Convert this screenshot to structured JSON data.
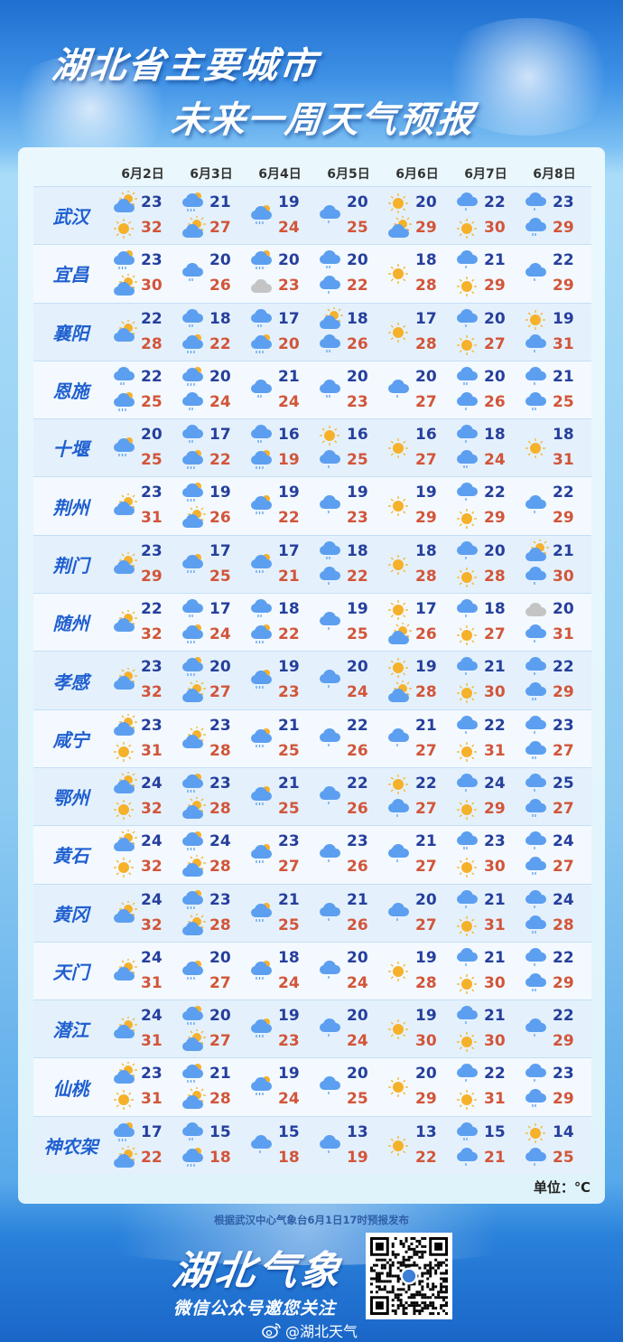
{
  "title": {
    "line1": "湖北省主要城市",
    "line2": "未来一周天气预报"
  },
  "colors": {
    "low": "#263f9c",
    "high": "#d2553a",
    "city": "#1f5fd0",
    "sun": "#f6b12a",
    "cloud": "#5c9ff0",
    "overcast": "#c4c4c4"
  },
  "table": {
    "days": [
      "6月2日",
      "6月3日",
      "6月4日",
      "6月5日",
      "6月6日",
      "6月7日",
      "6月8日"
    ],
    "rows": [
      {
        "city": "武汉",
        "cells": [
          {
            "icons": [
              "partly-cloudy",
              "sunny"
            ],
            "low": "23",
            "high": "32"
          },
          {
            "icons": [
              "shower",
              "partly-cloudy"
            ],
            "low": "21",
            "high": "27"
          },
          {
            "icons": [
              "shower"
            ],
            "low": "19",
            "high": "24"
          },
          {
            "icons": [
              "light-rain"
            ],
            "low": "20",
            "high": "25"
          },
          {
            "icons": [
              "sunny",
              "partly-cloudy"
            ],
            "low": "20",
            "high": "29"
          },
          {
            "icons": [
              "light-rain",
              "sunny"
            ],
            "low": "22",
            "high": "30"
          },
          {
            "icons": [
              "light-rain",
              "moderate-rain"
            ],
            "low": "23",
            "high": "29"
          }
        ]
      },
      {
        "city": "宜昌",
        "cells": [
          {
            "icons": [
              "shower",
              "partly-cloudy"
            ],
            "low": "23",
            "high": "30"
          },
          {
            "icons": [
              "moderate-rain"
            ],
            "low": "20",
            "high": "26"
          },
          {
            "icons": [
              "shower",
              "overcast"
            ],
            "low": "20",
            "high": "23"
          },
          {
            "icons": [
              "moderate-rain",
              "light-rain"
            ],
            "low": "20",
            "high": "22"
          },
          {
            "icons": [
              "sunny"
            ],
            "low": "18",
            "high": "28"
          },
          {
            "icons": [
              "light-rain",
              "sunny"
            ],
            "low": "21",
            "high": "29"
          },
          {
            "icons": [
              "light-rain"
            ],
            "low": "22",
            "high": "29"
          }
        ]
      },
      {
        "city": "襄阳",
        "cells": [
          {
            "icons": [
              "partly-cloudy"
            ],
            "low": "22",
            "high": "28"
          },
          {
            "icons": [
              "moderate-rain",
              "shower"
            ],
            "low": "18",
            "high": "22"
          },
          {
            "icons": [
              "moderate-rain",
              "shower"
            ],
            "low": "17",
            "high": "20"
          },
          {
            "icons": [
              "partly-cloudy",
              "moderate-rain"
            ],
            "low": "18",
            "high": "26"
          },
          {
            "icons": [
              "sunny"
            ],
            "low": "17",
            "high": "28"
          },
          {
            "icons": [
              "light-rain",
              "sunny"
            ],
            "low": "20",
            "high": "27"
          },
          {
            "icons": [
              "sunny",
              "light-rain"
            ],
            "low": "19",
            "high": "31"
          }
        ]
      },
      {
        "city": "恩施",
        "cells": [
          {
            "icons": [
              "moderate-rain",
              "shower"
            ],
            "low": "22",
            "high": "25"
          },
          {
            "icons": [
              "shower",
              "moderate-rain"
            ],
            "low": "20",
            "high": "24"
          },
          {
            "icons": [
              "moderate-rain"
            ],
            "low": "21",
            "high": "24"
          },
          {
            "icons": [
              "moderate-rain"
            ],
            "low": "20",
            "high": "23"
          },
          {
            "icons": [
              "light-rain"
            ],
            "low": "20",
            "high": "27"
          },
          {
            "icons": [
              "moderate-rain",
              "light-rain"
            ],
            "low": "20",
            "high": "26"
          },
          {
            "icons": [
              "light-rain",
              "moderate-rain"
            ],
            "low": "21",
            "high": "25"
          }
        ]
      },
      {
        "city": "十堰",
        "cells": [
          {
            "icons": [
              "shower"
            ],
            "low": "20",
            "high": "25"
          },
          {
            "icons": [
              "moderate-rain",
              "shower"
            ],
            "low": "17",
            "high": "22"
          },
          {
            "icons": [
              "moderate-rain",
              "shower"
            ],
            "low": "16",
            "high": "19"
          },
          {
            "icons": [
              "sunny",
              "light-rain"
            ],
            "low": "16",
            "high": "25"
          },
          {
            "icons": [
              "sunny"
            ],
            "low": "16",
            "high": "27"
          },
          {
            "icons": [
              "light-rain",
              "moderate-rain"
            ],
            "low": "18",
            "high": "24"
          },
          {
            "icons": [
              "sunny"
            ],
            "low": "18",
            "high": "31"
          }
        ]
      },
      {
        "city": "荆州",
        "cells": [
          {
            "icons": [
              "partly-cloudy"
            ],
            "low": "23",
            "high": "31"
          },
          {
            "icons": [
              "shower",
              "partly-cloudy"
            ],
            "low": "19",
            "high": "26"
          },
          {
            "icons": [
              "shower"
            ],
            "low": "19",
            "high": "22"
          },
          {
            "icons": [
              "light-rain"
            ],
            "low": "19",
            "high": "23"
          },
          {
            "icons": [
              "sunny"
            ],
            "low": "19",
            "high": "29"
          },
          {
            "icons": [
              "light-rain",
              "sunny"
            ],
            "low": "22",
            "high": "29"
          },
          {
            "icons": [
              "light-rain"
            ],
            "low": "22",
            "high": "29"
          }
        ]
      },
      {
        "city": "荆门",
        "cells": [
          {
            "icons": [
              "partly-cloudy"
            ],
            "low": "23",
            "high": "29"
          },
          {
            "icons": [
              "shower"
            ],
            "low": "17",
            "high": "25"
          },
          {
            "icons": [
              "shower"
            ],
            "low": "17",
            "high": "21"
          },
          {
            "icons": [
              "moderate-rain",
              "light-rain"
            ],
            "low": "18",
            "high": "22"
          },
          {
            "icons": [
              "sunny"
            ],
            "low": "18",
            "high": "28"
          },
          {
            "icons": [
              "light-rain",
              "sunny"
            ],
            "low": "20",
            "high": "28"
          },
          {
            "icons": [
              "partly-cloudy",
              "light-rain"
            ],
            "low": "21",
            "high": "30"
          }
        ]
      },
      {
        "city": "随州",
        "cells": [
          {
            "icons": [
              "partly-cloudy"
            ],
            "low": "22",
            "high": "32"
          },
          {
            "icons": [
              "moderate-rain",
              "shower"
            ],
            "low": "17",
            "high": "24"
          },
          {
            "icons": [
              "moderate-rain",
              "shower"
            ],
            "low": "18",
            "high": "22"
          },
          {
            "icons": [
              "light-rain"
            ],
            "low": "19",
            "high": "25"
          },
          {
            "icons": [
              "sunny",
              "partly-cloudy"
            ],
            "low": "17",
            "high": "26"
          },
          {
            "icons": [
              "light-rain",
              "sunny"
            ],
            "low": "18",
            "high": "27"
          },
          {
            "icons": [
              "overcast",
              "light-rain"
            ],
            "low": "20",
            "high": "31"
          }
        ]
      },
      {
        "city": "孝感",
        "cells": [
          {
            "icons": [
              "partly-cloudy"
            ],
            "low": "23",
            "high": "32"
          },
          {
            "icons": [
              "shower",
              "partly-cloudy"
            ],
            "low": "20",
            "high": "27"
          },
          {
            "icons": [
              "shower"
            ],
            "low": "19",
            "high": "23"
          },
          {
            "icons": [
              "light-rain"
            ],
            "low": "20",
            "high": "24"
          },
          {
            "icons": [
              "sunny",
              "partly-cloudy"
            ],
            "low": "19",
            "high": "28"
          },
          {
            "icons": [
              "light-rain",
              "sunny"
            ],
            "low": "21",
            "high": "30"
          },
          {
            "icons": [
              "light-rain",
              "moderate-rain"
            ],
            "low": "22",
            "high": "29"
          }
        ]
      },
      {
        "city": "咸宁",
        "cells": [
          {
            "icons": [
              "partly-cloudy",
              "sunny"
            ],
            "low": "23",
            "high": "31"
          },
          {
            "icons": [
              "partly-cloudy"
            ],
            "low": "23",
            "high": "28"
          },
          {
            "icons": [
              "shower"
            ],
            "low": "21",
            "high": "25"
          },
          {
            "icons": [
              "light-rain"
            ],
            "low": "22",
            "high": "26"
          },
          {
            "icons": [
              "light-rain"
            ],
            "low": "21",
            "high": "27"
          },
          {
            "icons": [
              "light-rain",
              "sunny"
            ],
            "low": "22",
            "high": "31"
          },
          {
            "icons": [
              "light-rain",
              "moderate-rain"
            ],
            "low": "23",
            "high": "27"
          }
        ]
      },
      {
        "city": "鄂州",
        "cells": [
          {
            "icons": [
              "partly-cloudy",
              "sunny"
            ],
            "low": "24",
            "high": "32"
          },
          {
            "icons": [
              "shower",
              "partly-cloudy"
            ],
            "low": "23",
            "high": "28"
          },
          {
            "icons": [
              "shower"
            ],
            "low": "21",
            "high": "25"
          },
          {
            "icons": [
              "light-rain"
            ],
            "low": "22",
            "high": "26"
          },
          {
            "icons": [
              "sunny",
              "light-rain"
            ],
            "low": "22",
            "high": "27"
          },
          {
            "icons": [
              "light-rain",
              "sunny"
            ],
            "low": "24",
            "high": "29"
          },
          {
            "icons": [
              "light-rain",
              "moderate-rain"
            ],
            "low": "25",
            "high": "27"
          }
        ]
      },
      {
        "city": "黄石",
        "cells": [
          {
            "icons": [
              "partly-cloudy",
              "sunny"
            ],
            "low": "24",
            "high": "32"
          },
          {
            "icons": [
              "shower",
              "partly-cloudy"
            ],
            "low": "24",
            "high": "28"
          },
          {
            "icons": [
              "shower"
            ],
            "low": "23",
            "high": "27"
          },
          {
            "icons": [
              "light-rain"
            ],
            "low": "23",
            "high": "26"
          },
          {
            "icons": [
              "light-rain"
            ],
            "low": "21",
            "high": "27"
          },
          {
            "icons": [
              "moderate-rain",
              "sunny"
            ],
            "low": "23",
            "high": "30"
          },
          {
            "icons": [
              "light-rain",
              "moderate-rain"
            ],
            "low": "24",
            "high": "27"
          }
        ]
      },
      {
        "city": "黄冈",
        "cells": [
          {
            "icons": [
              "partly-cloudy"
            ],
            "low": "24",
            "high": "32"
          },
          {
            "icons": [
              "shower",
              "partly-cloudy"
            ],
            "low": "23",
            "high": "28"
          },
          {
            "icons": [
              "shower"
            ],
            "low": "21",
            "high": "25"
          },
          {
            "icons": [
              "light-rain"
            ],
            "low": "21",
            "high": "26"
          },
          {
            "icons": [
              "light-rain"
            ],
            "low": "20",
            "high": "27"
          },
          {
            "icons": [
              "light-rain",
              "sunny"
            ],
            "low": "21",
            "high": "31"
          },
          {
            "icons": [
              "light-rain",
              "moderate-rain"
            ],
            "low": "24",
            "high": "28"
          }
        ]
      },
      {
        "city": "天门",
        "cells": [
          {
            "icons": [
              "partly-cloudy"
            ],
            "low": "24",
            "high": "31"
          },
          {
            "icons": [
              "shower"
            ],
            "low": "20",
            "high": "27"
          },
          {
            "icons": [
              "shower"
            ],
            "low": "18",
            "high": "24"
          },
          {
            "icons": [
              "light-rain"
            ],
            "low": "20",
            "high": "24"
          },
          {
            "icons": [
              "sunny"
            ],
            "low": "19",
            "high": "28"
          },
          {
            "icons": [
              "light-rain",
              "sunny"
            ],
            "low": "21",
            "high": "30"
          },
          {
            "icons": [
              "light-rain",
              "moderate-rain"
            ],
            "low": "22",
            "high": "29"
          }
        ]
      },
      {
        "city": "潜江",
        "cells": [
          {
            "icons": [
              "partly-cloudy"
            ],
            "low": "24",
            "high": "31"
          },
          {
            "icons": [
              "shower",
              "partly-cloudy"
            ],
            "low": "20",
            "high": "27"
          },
          {
            "icons": [
              "shower"
            ],
            "low": "19",
            "high": "23"
          },
          {
            "icons": [
              "light-rain"
            ],
            "low": "20",
            "high": "24"
          },
          {
            "icons": [
              "sunny"
            ],
            "low": "19",
            "high": "30"
          },
          {
            "icons": [
              "light-rain",
              "sunny"
            ],
            "low": "21",
            "high": "30"
          },
          {
            "icons": [
              "light-rain"
            ],
            "low": "22",
            "high": "29"
          }
        ]
      },
      {
        "city": "仙桃",
        "cells": [
          {
            "icons": [
              "partly-cloudy",
              "sunny"
            ],
            "low": "23",
            "high": "31"
          },
          {
            "icons": [
              "shower",
              "partly-cloudy"
            ],
            "low": "21",
            "high": "28"
          },
          {
            "icons": [
              "shower"
            ],
            "low": "19",
            "high": "24"
          },
          {
            "icons": [
              "light-rain"
            ],
            "low": "20",
            "high": "25"
          },
          {
            "icons": [
              "sunny"
            ],
            "low": "20",
            "high": "29"
          },
          {
            "icons": [
              "light-rain",
              "sunny"
            ],
            "low": "22",
            "high": "31"
          },
          {
            "icons": [
              "light-rain",
              "moderate-rain"
            ],
            "low": "23",
            "high": "29"
          }
        ]
      },
      {
        "city": "神农架",
        "cells": [
          {
            "icons": [
              "shower",
              "partly-cloudy"
            ],
            "low": "17",
            "high": "22"
          },
          {
            "icons": [
              "moderate-rain",
              "shower"
            ],
            "low": "15",
            "high": "18"
          },
          {
            "icons": [
              "light-rain"
            ],
            "low": "15",
            "high": "18"
          },
          {
            "icons": [
              "light-rain"
            ],
            "low": "13",
            "high": "19"
          },
          {
            "icons": [
              "sunny"
            ],
            "low": "13",
            "high": "22"
          },
          {
            "icons": [
              "moderate-rain",
              "light-rain"
            ],
            "low": "15",
            "high": "21"
          },
          {
            "icons": [
              "sunny",
              "light-rain"
            ],
            "low": "14",
            "high": "25"
          }
        ]
      }
    ],
    "unit": "单位：℃"
  },
  "footer": {
    "source": "根据武汉中心气象台6月1日17时预报发布",
    "brand": "湖北气象",
    "slogan": "微信公众号邀您关注",
    "weibo": "@湖北天气"
  }
}
